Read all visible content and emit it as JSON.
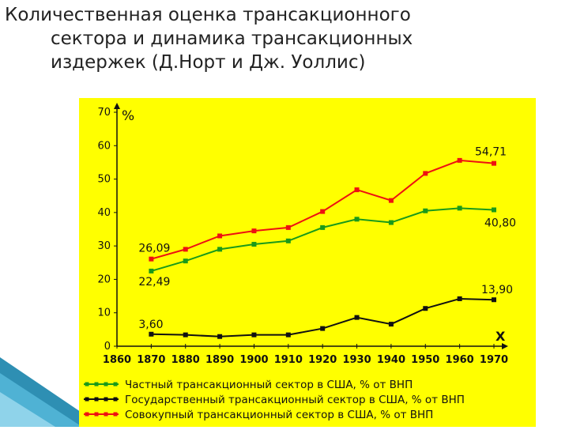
{
  "slide": {
    "title_lines": [
      "Количественная оценка трансакционного",
      "сектора и динамика трансакционных",
      "издержек (Д.Норт и Дж. Уоллис)"
    ]
  },
  "chart_data": {
    "type": "line",
    "title": "",
    "ylabel": "%",
    "xlabel": "X",
    "x": [
      1870,
      1880,
      1890,
      1900,
      1910,
      1920,
      1930,
      1940,
      1950,
      1960,
      1970
    ],
    "x_ticks": [
      "1860",
      "1870",
      "1880",
      "1890",
      "1900",
      "1910",
      "1920",
      "1930",
      "1940",
      "1950",
      "1960",
      "1970"
    ],
    "y_ticks": [
      "0",
      "10",
      "20",
      "30",
      "40",
      "50",
      "60",
      "70"
    ],
    "xlim": [
      1860,
      1970
    ],
    "ylim": [
      0,
      70
    ],
    "grid": false,
    "legend_position": "bottom",
    "series": [
      {
        "name": "Частный трансакционный сектор в США, % от ВНП",
        "color": "#1a9a1a",
        "values": [
          22.49,
          25.5,
          29,
          30.5,
          31.5,
          35.5,
          38,
          37,
          40.5,
          41.3,
          40.8
        ]
      },
      {
        "name": "Государственный трансакционный сектор в США, % от ВНП",
        "color": "#111111",
        "values": [
          3.6,
          3.4,
          2.9,
          3.4,
          3.4,
          5.3,
          8.6,
          6.6,
          11.3,
          14.2,
          13.9
        ]
      },
      {
        "name": "Совокупный трансакционный сектор в США, % от ВНП",
        "color": "#ee1111",
        "values": [
          26.09,
          29,
          33,
          34.5,
          35.5,
          40.3,
          46.8,
          43.6,
          51.7,
          55.6,
          54.71
        ]
      }
    ],
    "annotations": [
      "26,09",
      "22,49",
      "3,60",
      "54,71",
      "40,80",
      "13,90"
    ]
  }
}
